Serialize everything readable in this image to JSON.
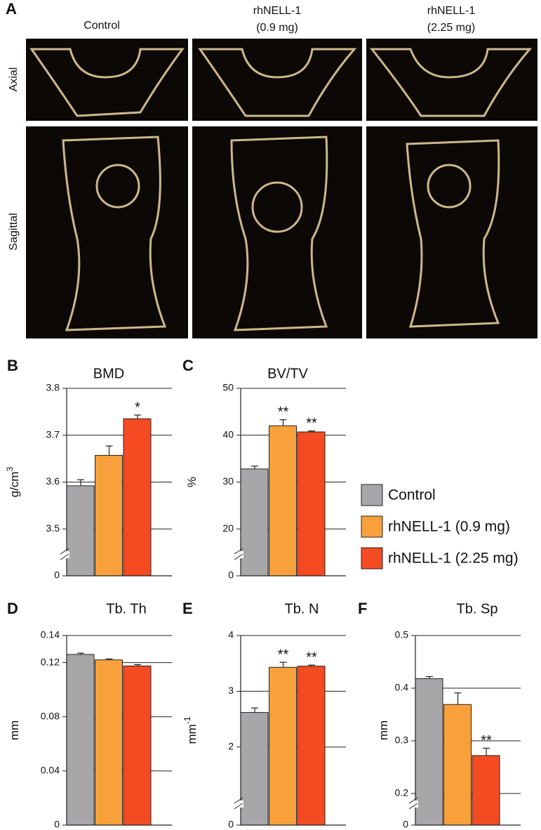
{
  "panel_a": {
    "label": "A",
    "columns": [
      [
        "Control"
      ],
      [
        "rhNELL-1",
        "(0.9 mg)"
      ],
      [
        "rhNELL-1",
        "(2.25 mg)"
      ]
    ],
    "rows": [
      "Axial",
      "Sagittal"
    ]
  },
  "legend": [
    {
      "name": "Control",
      "color": "#a7a7a9"
    },
    {
      "name": "rhNELL-1 (0.9 mg)",
      "color": "#f8a13c"
    },
    {
      "name": "rhNELL-1 (2.25 mg)",
      "color": "#f44b22"
    }
  ],
  "chart_data": [
    {
      "type": "bar",
      "panel_label": "B",
      "title": "BMD",
      "y_label": "g/cm",
      "y_label_superscript": "3",
      "values": [
        3.592,
        3.657,
        3.735
      ],
      "errors": [
        0.013,
        0.02,
        0.008
      ],
      "annotations": [
        null,
        null,
        "*"
      ],
      "ylim": [
        3.4,
        3.8
      ],
      "yticks": [
        0,
        3.5,
        3.6,
        3.7,
        3.8
      ],
      "axis_break": true,
      "grid": true
    },
    {
      "type": "bar",
      "panel_label": "C",
      "title": "BV/TV",
      "y_label": "%",
      "values": [
        32.8,
        42.0,
        40.7
      ],
      "errors": [
        0.6,
        1.3,
        0.2
      ],
      "annotations": [
        null,
        "**",
        "**"
      ],
      "ylim": [
        10,
        50
      ],
      "yticks": [
        0,
        20,
        30,
        40,
        50
      ],
      "axis_break": true,
      "grid": true
    },
    {
      "type": "bar",
      "panel_label": "D",
      "title": "Tb. Th",
      "y_label": "mm",
      "values": [
        0.126,
        0.122,
        0.1175
      ],
      "errors": [
        0.001,
        0.0007,
        0.001
      ],
      "annotations": [
        null,
        null,
        null
      ],
      "ylim": [
        0,
        0.14
      ],
      "yticks": [
        0,
        0.04,
        0.08,
        0.12,
        0.14
      ],
      "axis_break": false,
      "grid": true
    },
    {
      "type": "bar",
      "panel_label": "E",
      "title": "Tb. N",
      "y_label": "mm",
      "y_label_superscript": "-1",
      "values": [
        2.62,
        3.43,
        3.45
      ],
      "errors": [
        0.08,
        0.09,
        0.02
      ],
      "annotations": [
        null,
        "**",
        "**"
      ],
      "ylim": [
        0.6,
        4
      ],
      "yticks": [
        0,
        2,
        3,
        4
      ],
      "axis_break": true,
      "grid": true
    },
    {
      "type": "bar",
      "panel_label": "F",
      "title": "Tb. Sp",
      "y_label": "mm",
      "values": [
        0.418,
        0.369,
        0.272
      ],
      "errors": [
        0.004,
        0.022,
        0.014
      ],
      "annotations": [
        null,
        null,
        "**"
      ],
      "ylim": [
        0.14,
        0.5
      ],
      "yticks": [
        0,
        0.2,
        0.3,
        0.4,
        0.5
      ],
      "axis_break": true,
      "grid": true
    }
  ]
}
